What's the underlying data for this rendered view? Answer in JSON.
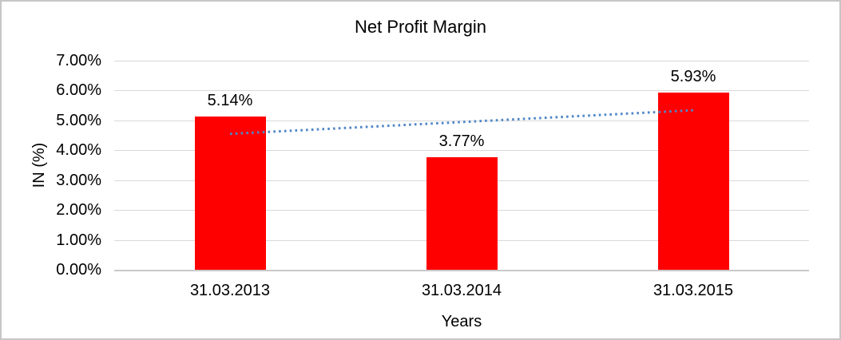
{
  "chart_data": {
    "type": "bar",
    "title": "Net Profit Margin",
    "xlabel": "Years",
    "ylabel": "IN (%)",
    "categories": [
      "31.03.2013",
      "31.03.2014",
      "31.03.2015"
    ],
    "series": [
      {
        "name": "Net Profit Margin",
        "values": [
          5.14,
          3.77,
          5.93
        ]
      }
    ],
    "data_labels": [
      "5.14%",
      "3.77%",
      "5.93%"
    ],
    "ylim": [
      0,
      7
    ],
    "ytick_labels": [
      "0.00%",
      "1.00%",
      "2.00%",
      "3.00%",
      "4.00%",
      "5.00%",
      "6.00%",
      "7.00%"
    ],
    "grid": true,
    "legend": "none",
    "bar_color": "#ff0000",
    "trendline": {
      "type": "linear",
      "style": "dotted",
      "color": "#4f86c8",
      "start_value": 4.55,
      "end_value": 5.34
    }
  }
}
